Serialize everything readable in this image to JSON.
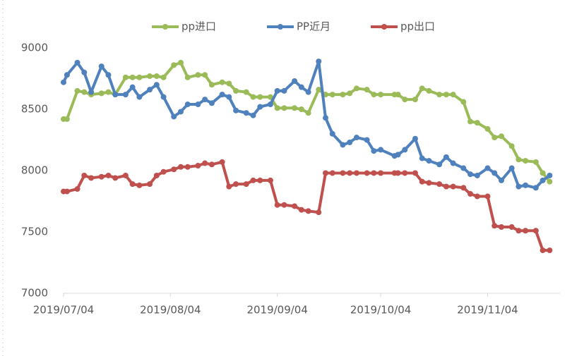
{
  "chart_data": {
    "type": "line",
    "x": [
      "2019/07/04",
      "2019/07/05",
      "2019/07/08",
      "2019/07/10",
      "2019/07/12",
      "2019/07/15",
      "2019/07/17",
      "2019/07/19",
      "2019/07/22",
      "2019/07/24",
      "2019/07/26",
      "2019/07/29",
      "2019/07/31",
      "2019/08/02",
      "2019/08/05",
      "2019/08/07",
      "2019/08/09",
      "2019/08/12",
      "2019/08/14",
      "2019/08/16",
      "2019/08/19",
      "2019/08/21",
      "2019/08/23",
      "2019/08/26",
      "2019/08/28",
      "2019/08/30",
      "2019/09/02",
      "2019/09/04",
      "2019/09/06",
      "2019/09/09",
      "2019/09/11",
      "2019/09/13",
      "2019/09/16",
      "2019/09/18",
      "2019/09/20",
      "2019/09/23",
      "2019/09/25",
      "2019/09/27",
      "2019/09/30",
      "2019/10/02",
      "2019/10/04",
      "2019/10/08",
      "2019/10/09",
      "2019/10/11",
      "2019/10/14",
      "2019/10/16",
      "2019/10/18",
      "2019/10/21",
      "2019/10/23",
      "2019/10/25",
      "2019/10/28",
      "2019/10/30",
      "2019/11/01",
      "2019/11/04",
      "2019/11/06",
      "2019/11/08",
      "2019/11/11",
      "2019/11/13",
      "2019/11/15",
      "2019/11/18",
      "2019/11/20",
      "2019/11/22"
    ],
    "series": [
      {
        "name": "pp进口",
        "color": "#9bbb59",
        "values": [
          8420,
          8420,
          8650,
          8640,
          8620,
          8630,
          8640,
          8620,
          8760,
          8760,
          8760,
          8770,
          8770,
          8760,
          8860,
          8880,
          8760,
          8780,
          8780,
          8700,
          8720,
          8710,
          8650,
          8640,
          8600,
          8600,
          8600,
          8510,
          8510,
          8510,
          8500,
          8470,
          8660,
          8620,
          8620,
          8620,
          8630,
          8670,
          8660,
          8620,
          8620,
          8620,
          8620,
          8580,
          8580,
          8670,
          8650,
          8620,
          8620,
          8620,
          8560,
          8400,
          8390,
          8340,
          8270,
          8280,
          8200,
          8090,
          8080,
          8070,
          7980,
          7910
        ]
      },
      {
        "name": "PP近月",
        "color": "#4f81bd",
        "values": [
          8720,
          8780,
          8880,
          8800,
          8640,
          8850,
          8780,
          8620,
          8620,
          8680,
          8600,
          8660,
          8700,
          8600,
          8440,
          8480,
          8540,
          8540,
          8580,
          8550,
          8620,
          8600,
          8490,
          8470,
          8450,
          8520,
          8540,
          8650,
          8650,
          8730,
          8680,
          8640,
          8890,
          8430,
          8300,
          8210,
          8230,
          8270,
          8250,
          8160,
          8170,
          8120,
          8130,
          8170,
          8260,
          8100,
          8080,
          8050,
          8110,
          8060,
          8020,
          7970,
          7960,
          8020,
          7980,
          7920,
          8020,
          7870,
          7880,
          7860,
          7920,
          7960
        ]
      },
      {
        "name": "pp出口",
        "color": "#c0504d",
        "values": [
          7830,
          7830,
          7850,
          7960,
          7940,
          7950,
          7960,
          7940,
          7960,
          7890,
          7880,
          7890,
          7960,
          7990,
          8010,
          8030,
          8030,
          8040,
          8060,
          8050,
          8070,
          7870,
          7890,
          7890,
          7920,
          7920,
          7920,
          7720,
          7720,
          7710,
          7680,
          7670,
          7660,
          7980,
          7980,
          7980,
          7980,
          7980,
          7980,
          7980,
          7980,
          7980,
          7980,
          7980,
          7980,
          7910,
          7900,
          7890,
          7870,
          7870,
          7860,
          7810,
          7790,
          7790,
          7550,
          7540,
          7540,
          7510,
          7510,
          7510,
          7350,
          7350
        ]
      }
    ],
    "xlim": [
      "2019/07/04",
      "2019/11/25"
    ],
    "xticks": [
      "2019/07/04",
      "2019/08/04",
      "2019/09/04",
      "2019/10/04",
      "2019/11/04"
    ],
    "ylim": [
      7000,
      9000
    ],
    "yticks": [
      7000,
      7500,
      8000,
      8500,
      9000
    ],
    "grid": false,
    "legend": "top"
  }
}
